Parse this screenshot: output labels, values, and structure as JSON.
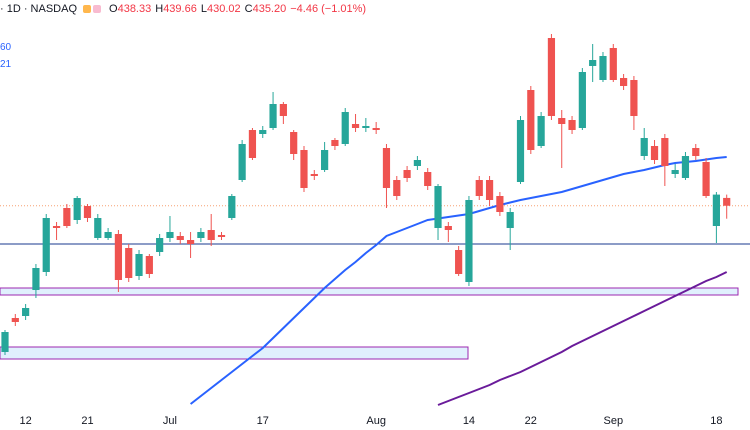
{
  "header": {
    "symbol": "· 1D · NASDAQ",
    "ohlc": [
      {
        "key": "O",
        "value": "438.33"
      },
      {
        "key": "H",
        "value": "439.66"
      },
      {
        "key": "L",
        "value": "430.02"
      },
      {
        "key": "C",
        "value": "435.20"
      }
    ],
    "change": "−4.46 (−1.01%)",
    "indicators": [
      "60",
      "21"
    ]
  },
  "chart_data": {
    "type": "candlestick",
    "categories": [
      null,
      null,
      "12",
      null,
      null,
      null,
      null,
      null,
      "21",
      null,
      null,
      null,
      null,
      null,
      null,
      null,
      "Jul",
      null,
      null,
      null,
      null,
      null,
      null,
      null,
      null,
      "17",
      null,
      null,
      null,
      null,
      null,
      null,
      null,
      null,
      null,
      null,
      "Aug",
      null,
      null,
      null,
      null,
      null,
      null,
      null,
      null,
      "14",
      null,
      null,
      null,
      null,
      null,
      "22",
      null,
      null,
      null,
      null,
      null,
      null,
      null,
      "Sep",
      null,
      null,
      null,
      null,
      null,
      null,
      null,
      null,
      null,
      "18",
      null
    ],
    "open": [
      376.7,
      390.3,
      391.1,
      401.5,
      408.7,
      427.1,
      434.3,
      429.5,
      435.1,
      422.3,
      422.3,
      423.9,
      418.3,
      407.1,
      415.1,
      416.7,
      422.3,
      423.1,
      421.5,
      422.3,
      425.5,
      423.5,
      430.3,
      445.5,
      465.5,
      463.9,
      466.3,
      475.9,
      464.7,
      457.5,
      447.9,
      449.5,
      461.5,
      459.9,
      467.9,
      466.3,
      466.3,
      458.3,
      445.5,
      449.5,
      451.1,
      448.7,
      426.3,
      427.1,
      417.5,
      404.7,
      445.5,
      445.5,
      439.1,
      426.3,
      444.7,
      481.5,
      459.1,
      502.3,
      470.3,
      469.5,
      466.3,
      491.1,
      485.5,
      498.3,
      486.3,
      485.5,
      455.1,
      459.1,
      462.3,
      447.9,
      446.3,
      458.3,
      452.7,
      427.1,
      438.33
    ],
    "high": [
      385.5,
      391.9,
      395.9,
      411.9,
      431.9,
      428.7,
      435.9,
      439.1,
      435.9,
      431.9,
      426.3,
      425.5,
      419.9,
      417.5,
      415.9,
      423.9,
      431.1,
      424.7,
      424.7,
      426.3,
      431.9,
      424.7,
      439.9,
      461.5,
      466.3,
      467.1,
      480.7,
      476.7,
      465.5,
      459.1,
      449.5,
      460.7,
      462.3,
      474.3,
      471.9,
      470.3,
      468.7,
      459.9,
      447.1,
      451.1,
      455.1,
      450.3,
      443.9,
      428.7,
      419.1,
      439.1,
      447.1,
      447.1,
      440.7,
      434.3,
      471.1,
      483.1,
      472.7,
      503.9,
      473.5,
      471.1,
      490.3,
      499.9,
      496.7,
      499.9,
      487.9,
      487.1,
      466.3,
      461.5,
      463.9,
      451.9,
      456.7,
      459.9,
      454.3,
      440.7,
      439.66
    ],
    "low": [
      375.5,
      387.1,
      389.5,
      398.3,
      407.1,
      421.5,
      426.3,
      427.9,
      428.7,
      421.5,
      421.5,
      400.7,
      404.7,
      405.5,
      406.3,
      415.1,
      420.7,
      419.9,
      414.3,
      420.7,
      419.1,
      421.5,
      429.5,
      444.7,
      453.5,
      462.3,
      465.5,
      467.9,
      453.5,
      440.7,
      445.5,
      448.7,
      457.5,
      459.1,
      464.7,
      464.7,
      463.9,
      434.3,
      437.5,
      444.7,
      449.5,
      441.5,
      421.5,
      420.7,
      407.1,
      403.1,
      437.5,
      435.1,
      431.1,
      417.5,
      443.9,
      455.9,
      458.3,
      469.5,
      450.3,
      463.9,
      465.5,
      484.7,
      484.7,
      484.7,
      481.5,
      465.5,
      453.5,
      451.9,
      443.1,
      446.3,
      445.5,
      453.5,
      438.3,
      420.3,
      430.02
    ],
    "close": [
      384.7,
      388.7,
      394.3,
      410.3,
      430.3,
      426.3,
      427.1,
      438.3,
      430.3,
      430.3,
      424.7,
      405.5,
      406.3,
      415.9,
      407.9,
      422.3,
      424.7,
      421.5,
      419.9,
      424.7,
      421.5,
      422.7,
      439.1,
      459.9,
      454.3,
      465.5,
      475.9,
      471.1,
      455.9,
      442.3,
      447.1,
      457.5,
      459.1,
      472.7,
      466.3,
      467.1,
      465.5,
      442.3,
      439.1,
      446.3,
      453.5,
      443.1,
      443.1,
      425.5,
      407.9,
      437.5,
      439.1,
      437.5,
      432.7,
      432.7,
      469.5,
      457.5,
      471.1,
      471.1,
      467.9,
      465.5,
      488.7,
      493.5,
      495.1,
      485.5,
      483.1,
      471.1,
      462.3,
      453.5,
      451.1,
      449.5,
      455.1,
      455.1,
      439.1,
      439.66,
      435.2
    ],
    "up_color": "#26a69a",
    "down_color": "#ef5350",
    "ylim": [
      354.3,
      517.5
    ],
    "lines": [
      {
        "color": "#2962ff",
        "values": [
          null,
          null,
          null,
          null,
          null,
          null,
          null,
          null,
          null,
          null,
          null,
          null,
          null,
          null,
          null,
          null,
          null,
          null,
          355.9,
          359.1,
          362.3,
          365.5,
          368.7,
          371.9,
          375.1,
          378.3,
          382.3,
          386.3,
          390.3,
          394.3,
          398.3,
          402.3,
          405.9,
          409.5,
          412.7,
          416.3,
          419.5,
          423.1,
          424.7,
          426.3,
          427.9,
          429.5,
          430.1,
          430.7,
          431.3,
          431.9,
          433.1,
          434.3,
          435.5,
          436.5,
          437.5,
          438.3,
          439.1,
          439.9,
          440.7,
          441.9,
          443.1,
          444.3,
          445.5,
          446.7,
          447.9,
          448.7,
          449.5,
          450.5,
          451.5,
          452.3,
          452.7,
          453.1,
          453.7,
          454.3,
          454.7
        ]
      },
      {
        "color": "#6a1b9a",
        "values": [
          null,
          null,
          null,
          null,
          null,
          null,
          null,
          null,
          null,
          null,
          null,
          null,
          null,
          null,
          null,
          null,
          null,
          null,
          null,
          null,
          null,
          null,
          null,
          null,
          null,
          null,
          null,
          null,
          null,
          null,
          null,
          null,
          null,
          null,
          null,
          null,
          null,
          null,
          null,
          null,
          null,
          null,
          355.5,
          357.1,
          358.7,
          360.3,
          361.9,
          363.5,
          365.5,
          367.1,
          368.7,
          370.7,
          372.7,
          374.7,
          376.7,
          379.1,
          381.1,
          383.1,
          385.1,
          387.1,
          389.1,
          391.1,
          393.1,
          395.1,
          397.1,
          399.1,
          401.1,
          403.1,
          405.1,
          406.7,
          408.7
        ]
      }
    ],
    "hline": {
      "value": 419.9,
      "color": "#1a3a8f"
    },
    "zones": [
      {
        "low": 399.5,
        "high": 402.3
      },
      {
        "low": 373.9,
        "high": 378.7
      }
    ]
  }
}
